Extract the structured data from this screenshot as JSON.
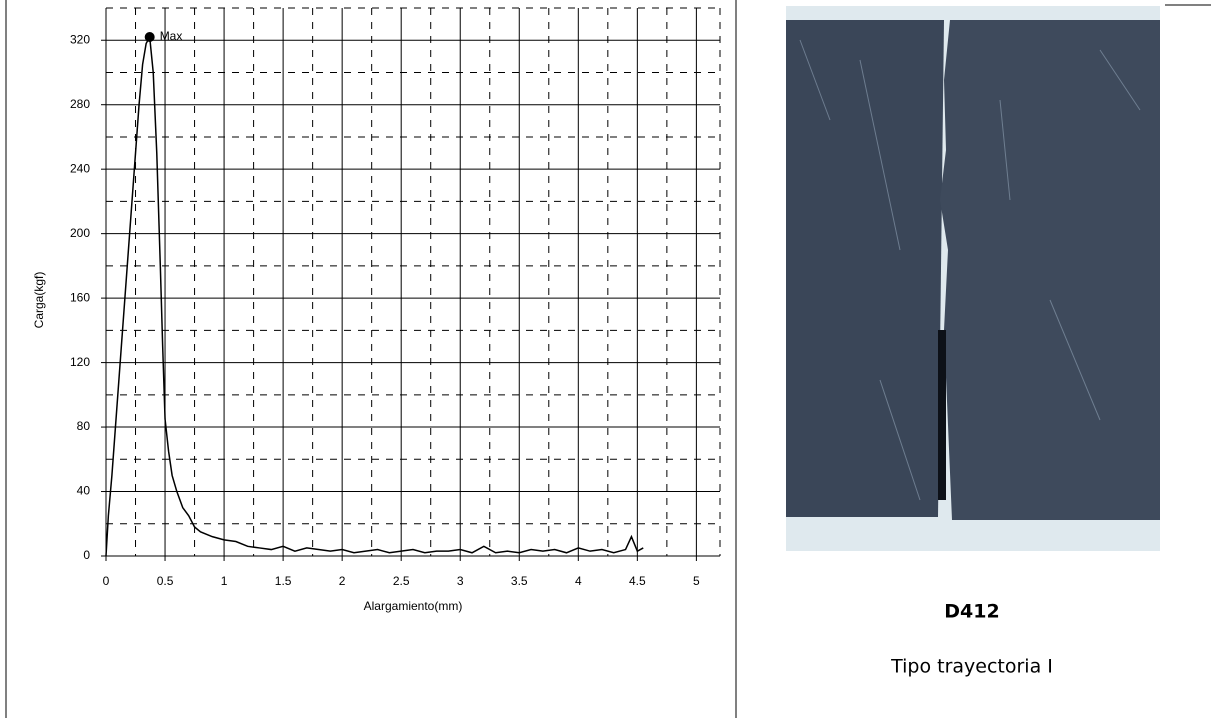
{
  "chart_data": {
    "type": "line",
    "y_label": "Carga(kgf)",
    "x_label": "Alargamiento(mm)",
    "x": [
      0,
      0.02,
      0.05,
      0.08,
      0.1,
      0.13,
      0.16,
      0.2,
      0.24,
      0.28,
      0.31,
      0.34,
      0.37,
      0.4,
      0.43,
      0.46,
      0.48,
      0.5,
      0.53,
      0.56,
      0.6,
      0.65,
      0.7,
      0.75,
      0.8,
      0.9,
      1.0,
      1.1,
      1.2,
      1.3,
      1.4,
      1.5,
      1.6,
      1.7,
      1.8,
      1.9,
      2.0,
      2.1,
      2.2,
      2.3,
      2.4,
      2.5,
      2.6,
      2.7,
      2.8,
      2.9,
      3.0,
      3.1,
      3.2,
      3.3,
      3.4,
      3.5,
      3.6,
      3.7,
      3.8,
      3.9,
      4.0,
      4.1,
      4.2,
      4.3,
      4.4,
      4.45,
      4.5,
      4.55
    ],
    "values": [
      0,
      25,
      50,
      80,
      100,
      130,
      160,
      200,
      240,
      280,
      305,
      318,
      322,
      300,
      250,
      180,
      130,
      85,
      65,
      50,
      40,
      30,
      25,
      18,
      15,
      12,
      10,
      9,
      6,
      5,
      4,
      6,
      3,
      5,
      4,
      3,
      4,
      2,
      3,
      4,
      2,
      3,
      4,
      2,
      3,
      3,
      4,
      2,
      6,
      2,
      3,
      2,
      4,
      3,
      4,
      2,
      5,
      3,
      4,
      2,
      4,
      12,
      3,
      5
    ],
    "color": "#000000",
    "xlim": [
      0,
      5.2
    ],
    "ylim": [
      0,
      340
    ],
    "xticks": [
      0,
      0.5,
      1,
      1.5,
      2,
      2.5,
      3,
      3.5,
      4,
      4.5,
      5
    ],
    "yticks": [
      0,
      40,
      80,
      120,
      160,
      200,
      240,
      280,
      320
    ],
    "minor_xticks": [
      0.25,
      0.75,
      1.25,
      1.75,
      2.25,
      2.75,
      3.25,
      3.75,
      4.25,
      4.75,
      5.2
    ],
    "minor_yticks": [
      20,
      60,
      100,
      140,
      180,
      220,
      260,
      300,
      340
    ],
    "grid": true,
    "annotations": [
      {
        "text": "Max",
        "x": 0.37,
        "y": 322
      }
    ]
  },
  "caption": {
    "code": "D412",
    "text": "Tipo trayectoria I"
  }
}
